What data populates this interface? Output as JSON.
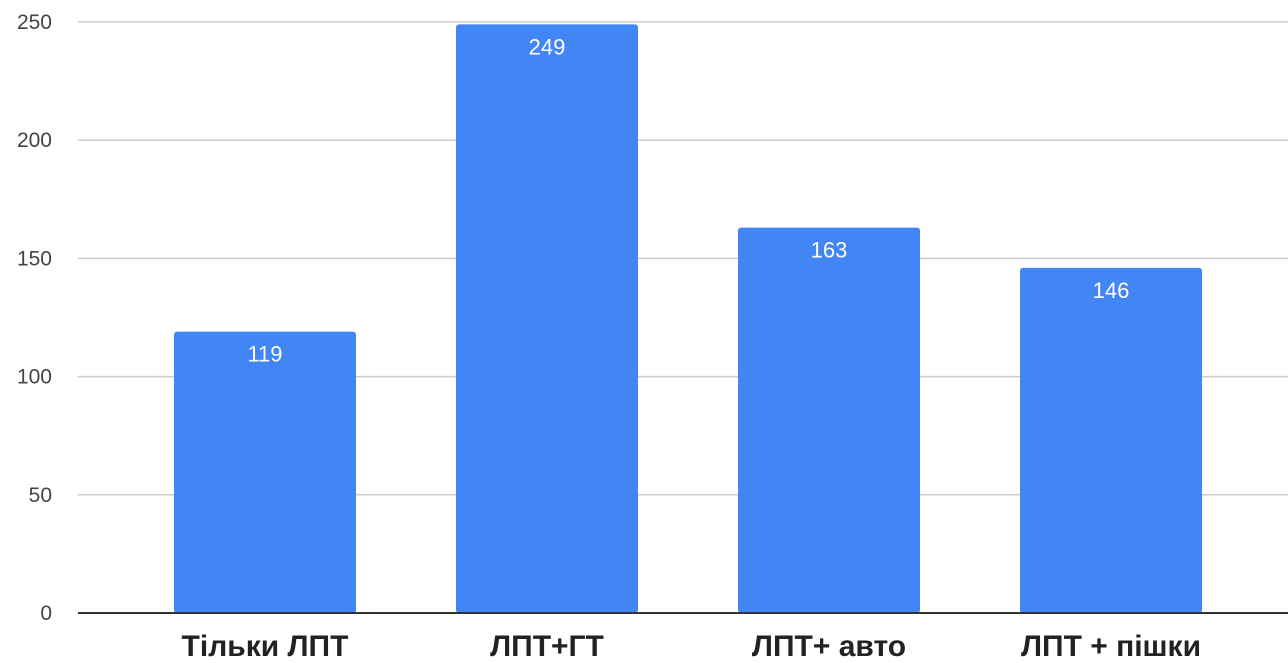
{
  "chart_data": {
    "type": "bar",
    "categories": [
      "Тільки ЛПТ",
      "ЛПТ+ГТ",
      "ЛПТ+ авто",
      "ЛПТ + пішки"
    ],
    "values": [
      119,
      249,
      163,
      146
    ],
    "data_labels": [
      "119",
      "249",
      "163",
      "146"
    ],
    "ylim": [
      0,
      250
    ],
    "yticks": [
      0,
      50,
      100,
      150,
      200,
      250
    ],
    "grid": true,
    "bar_color": "#4285f4"
  }
}
